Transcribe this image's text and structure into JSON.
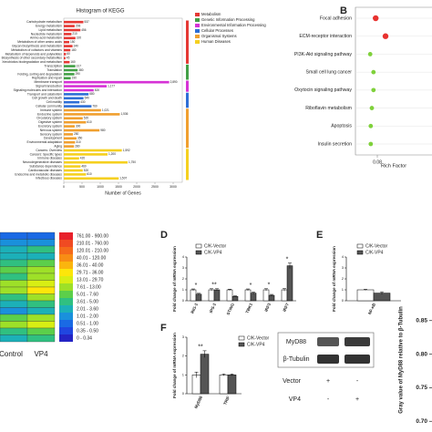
{
  "panel_letters": [
    "B",
    "D",
    "E",
    "F"
  ],
  "chart_data": [
    {
      "type": "hbar",
      "title": "Histogram of KEGG",
      "xlabel": "Number of Genes",
      "xlim": [
        0,
        3250
      ],
      "xticks": [
        0,
        500,
        1000,
        1500,
        2000,
        2500,
        3000
      ],
      "groups": [
        {
          "name": "Metabolism",
          "color": "#e53935",
          "categories": [
            "Carbohydrate metabolism",
            "Energy metabolism",
            "Lipid metabolism",
            "Nucleotide metabolism",
            "Amino acid metabolism",
            "Metabolism of other amino acids",
            "Glycan biosynthesis and metabolism",
            "Metabolism of cofactors and vitamins",
            "Metabolism of terpenoids and polyketides",
            "Biosynthesis of other secondary metabolites",
            "Xenobiotics biodegradation and metabolism"
          ],
          "values": [
            537,
            298,
            456,
            210,
            320,
            150,
            240,
            180,
            60,
            45,
            160
          ],
          "value_labels": [
            "537",
            "298",
            "456",
            "210",
            "320",
            "150",
            "240",
            "180",
            "60",
            "45",
            "160"
          ]
        },
        {
          "name": "Genetic Information Processing",
          "color": "#43a047",
          "categories": [
            "Transcription",
            "Translation",
            "Folding, sorting and degradation",
            "Replication and repair"
          ],
          "values": [
            317,
            380,
            290,
            190
          ],
          "value_labels": [
            "317",
            "380",
            "290",
            "190"
          ]
        },
        {
          "name": "Environmental Information Processing",
          "color": "#d633d6",
          "categories": [
            "Membrane transport",
            "Signal transduction",
            "Signaling molecules and interaction"
          ],
          "values": [
            2890,
            1177,
            820
          ],
          "value_labels": [
            "2,890",
            "1,177",
            "820"
          ]
        },
        {
          "name": "Cellular Processes",
          "color": "#2f6fd6",
          "categories": [
            "Transport and catabolism",
            "Cell growth and death",
            "Cell motility",
            "Cellular community"
          ],
          "values": [
            680,
            540,
            430,
            760
          ],
          "value_labels": [
            "680",
            "540",
            "430",
            "760"
          ]
        },
        {
          "name": "Organismal Systems",
          "color": "#f0a030",
          "categories": [
            "Immune system",
            "Endocrine system",
            "Circulatory system",
            "Digestive system",
            "Excretory system",
            "Nervous system",
            "Sensory system",
            "Development",
            "Environmental adaptation",
            "Aging"
          ],
          "values": [
            1021,
            1536,
            520,
            610,
            300,
            980,
            250,
            350,
            310,
            280
          ],
          "value_labels": [
            "1,021",
            "1,536",
            "520",
            "610",
            "300",
            "980",
            "250",
            "350",
            "310",
            "280"
          ]
        },
        {
          "name": "Human Diseases",
          "color": "#f5d020",
          "categories": [
            "Cancers: Overview",
            "Cancers: Specific types",
            "Immune diseases",
            "Neurodegenerative diseases",
            "Substance dependence",
            "Cardiovascular diseases",
            "Endocrine and metabolic diseases",
            "Infectious diseases"
          ],
          "values": [
            1592,
            1200,
            420,
            1750,
            460,
            520,
            610,
            1507
          ],
          "value_labels": [
            "1,592",
            "1,200",
            "420",
            "1,750",
            "460",
            "520",
            "610",
            "1,507"
          ]
        }
      ]
    },
    {
      "type": "dot",
      "xlabel": "Rich Factor",
      "xlim": [
        0.04,
        0.18
      ],
      "xticks": [
        0.08
      ],
      "categories": [
        "Focal adhesion",
        "ECM-receptor interaction",
        "PI3K-Akt signaling pathway",
        "Small cell lung cancer",
        "Oxytocin signaling pathway",
        "Riboflavin metabolism",
        "Apoptosis",
        "Insulin secretion"
      ],
      "values": [
        0.077,
        0.095,
        0.067,
        0.073,
        0.073,
        0.07,
        0.068,
        0.068
      ],
      "colors": [
        "#e8322f",
        "#e8322f",
        "#7fd13b",
        "#7fd13b",
        "#7fd13b",
        "#7fd13b",
        "#7fd13b",
        "#7fd13b"
      ]
    },
    {
      "type": "heatmap",
      "columns": [
        "Control",
        "VP4"
      ],
      "values": [
        [
          0.8,
          1
        ],
        [
          1.5,
          2
        ],
        [
          3,
          4
        ],
        [
          2.5,
          3
        ],
        [
          4,
          6
        ],
        [
          6,
          8
        ],
        [
          5,
          10
        ],
        [
          9,
          20
        ],
        [
          8,
          32
        ],
        [
          4,
          8
        ],
        [
          3,
          5
        ],
        [
          2,
          3
        ],
        [
          6,
          9
        ],
        [
          12,
          15
        ],
        [
          5,
          7
        ],
        [
          3,
          4
        ]
      ],
      "bins": [
        {
          "low": 761,
          "high": 900,
          "label": "761.00 - 900.00",
          "color": "#e8202a"
        },
        {
          "low": 210.01,
          "high": 760,
          "label": "210.01 - 760.00",
          "color": "#f04a22"
        },
        {
          "low": 120.01,
          "high": 210,
          "label": "120.01 - 210.00",
          "color": "#f56a1a"
        },
        {
          "low": 40.01,
          "high": 120,
          "label": "40.01 - 120.00",
          "color": "#f88d14"
        },
        {
          "low": 36.01,
          "high": 40,
          "label": "36.01 - 40.00",
          "color": "#fbb50e"
        },
        {
          "low": 29.71,
          "high": 36,
          "label": "29.71 - 36.00",
          "color": "#fde60a"
        },
        {
          "low": 13.01,
          "high": 29.7,
          "label": "13.01 - 29.70",
          "color": "#d8ee14"
        },
        {
          "low": 7.61,
          "high": 13,
          "label": "7.61 - 13.00",
          "color": "#9ee028"
        },
        {
          "low": 5.01,
          "high": 7.6,
          "label": "5.01 - 7.60",
          "color": "#5ccf4a"
        },
        {
          "low": 3.61,
          "high": 5,
          "label": "3.61 - 5.00",
          "color": "#30c080"
        },
        {
          "low": 2.01,
          "high": 3.6,
          "label": "2.01 - 3.60",
          "color": "#1cb0b8"
        },
        {
          "low": 1.01,
          "high": 2,
          "label": "1.01 - 2.00",
          "color": "#1a90dc"
        },
        {
          "low": 0.51,
          "high": 1,
          "label": "0.51 - 1.00",
          "color": "#1a6ae4"
        },
        {
          "low": 0.35,
          "high": 0.5,
          "label": "0.35 - 0.50",
          "color": "#2046e0"
        },
        {
          "low": 0,
          "high": 0.34,
          "label": "0 - 0.34",
          "color": "#2424c4"
        }
      ]
    },
    {
      "type": "bar",
      "ylabel": "Fold change of mRNA expression",
      "ylim": [
        0,
        4
      ],
      "yticks": [
        0,
        1,
        2,
        3,
        4
      ],
      "categories": [
        "RIG-1",
        "IPS-1",
        "STING",
        "TBK1",
        "IRF3",
        "IRF7"
      ],
      "annotations": [
        "*",
        "**",
        null,
        "*",
        "*",
        "*"
      ],
      "series": [
        {
          "name": "C/K-Vector",
          "color": "#ffffff",
          "values": [
            1,
            1,
            1,
            1,
            1,
            1
          ],
          "errors": [
            0.08,
            0.1,
            0.06,
            0.08,
            0.1,
            0.12
          ]
        },
        {
          "name": "C/K-VP4",
          "color": "#555555",
          "values": [
            0.6,
            1,
            0.4,
            0.7,
            0.5,
            3.2
          ],
          "errors": [
            0.08,
            0.1,
            0.05,
            0.1,
            0.08,
            0.25
          ]
        }
      ]
    },
    {
      "type": "bar",
      "ylabel": "Fold change of mRNA expression",
      "ylim": [
        0,
        4
      ],
      "yticks": [
        0,
        1,
        2,
        3,
        4
      ],
      "categories": [
        "NF-κB"
      ],
      "annotations": [
        null
      ],
      "series": [
        {
          "name": "C/K-Vector",
          "color": "#ffffff",
          "values": [
            1
          ],
          "errors": [
            0.05
          ]
        },
        {
          "name": "C/K-VP4",
          "color": "#555555",
          "values": [
            0.7
          ],
          "errors": [
            0.12
          ]
        }
      ]
    },
    {
      "type": "bar",
      "ylabel": "Fold change of mRNA expression",
      "ylim": [
        0,
        3
      ],
      "yticks": [
        0,
        1,
        2,
        3
      ],
      "categories": [
        "MyD88",
        "TRIF"
      ],
      "annotations": [
        "**",
        null
      ],
      "series": [
        {
          "name": "C/K-Vector",
          "color": "#ffffff",
          "values": [
            1,
            1
          ],
          "errors": [
            0.15,
            0.05
          ]
        },
        {
          "name": "C/K-VP4",
          "color": "#555555",
          "values": [
            2.1,
            1
          ],
          "errors": [
            0.18,
            0.05
          ]
        }
      ]
    },
    {
      "type": "axis",
      "ylabel": "Gray value of MyD88 relative to β-Tubulin",
      "ylim": [
        0.684,
        0.866
      ],
      "yticks": [
        0.85,
        {
          "value": 0.8,
          "label": "0.80"
        },
        0.75,
        {
          "value": 0.7,
          "label": "0.70"
        }
      ]
    }
  ],
  "blot": {
    "rows": [
      "MyD88",
      "β-Tubulin"
    ],
    "conditions": [
      {
        "name": "Vector",
        "marks": [
          "+",
          "-"
        ]
      },
      {
        "name": "VP4",
        "marks": [
          "-",
          "+"
        ]
      }
    ]
  }
}
